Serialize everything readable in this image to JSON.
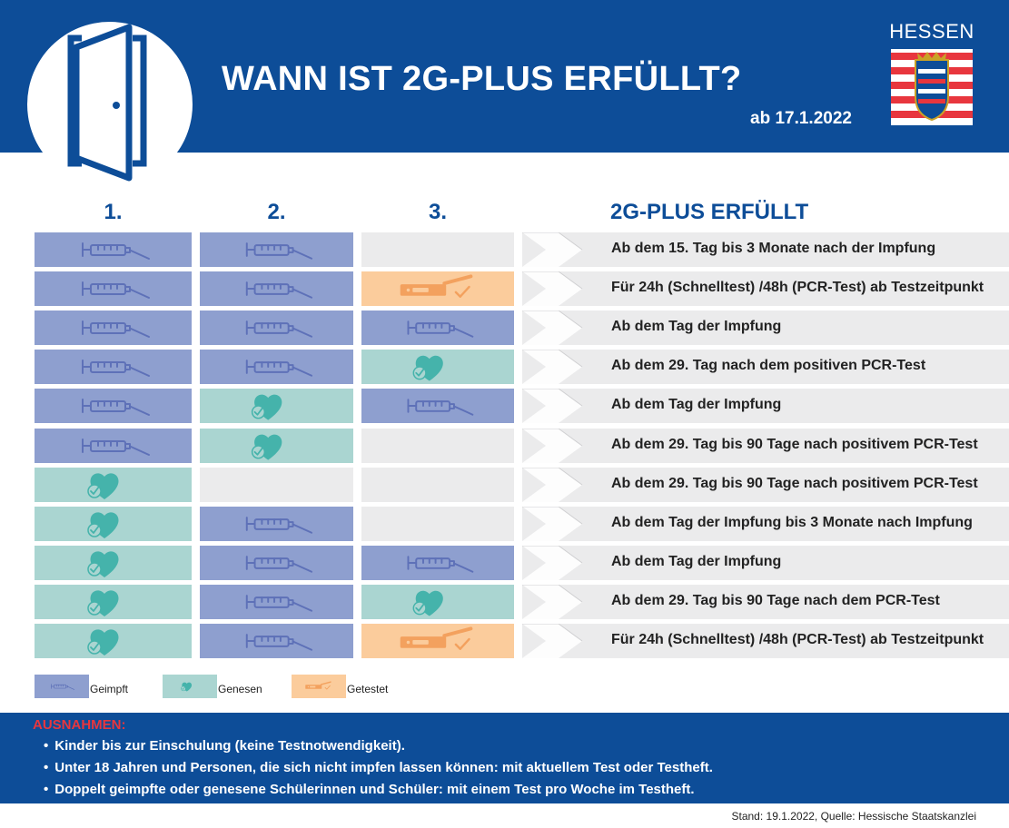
{
  "header": {
    "title": "WANN IST 2G-PLUS ERFÜLLT?",
    "date": "ab 17.1.2022",
    "brand": "HESSEN",
    "colors": {
      "primary": "#0d4d98",
      "accent_red": "#e8363e"
    }
  },
  "columns": [
    "1.",
    "2.",
    "3."
  ],
  "result_header": "2G-PLUS ERFÜLLT",
  "status_colors": {
    "geimpft": "#8e9fcf",
    "genesen": "#aad5d1",
    "getestet": "#fbcc9c",
    "empty": "#ebebec"
  },
  "rows": [
    {
      "cells": [
        "geimpft",
        "geimpft",
        "empty"
      ],
      "result": "Ab dem 15. Tag bis 3 Monate nach der Impfung"
    },
    {
      "cells": [
        "geimpft",
        "geimpft",
        "getestet"
      ],
      "result": "Für 24h (Schnelltest) /48h (PCR-Test) ab Testzeitpunkt"
    },
    {
      "cells": [
        "geimpft",
        "geimpft",
        "geimpft"
      ],
      "result": "Ab dem Tag der Impfung"
    },
    {
      "cells": [
        "geimpft",
        "geimpft",
        "genesen"
      ],
      "result": "Ab dem 29. Tag nach dem positiven PCR-Test"
    },
    {
      "cells": [
        "geimpft",
        "genesen",
        "geimpft"
      ],
      "result": "Ab dem Tag der Impfung"
    },
    {
      "cells": [
        "geimpft",
        "genesen",
        "empty"
      ],
      "result": "Ab dem 29. Tag bis 90 Tage nach positivem PCR-Test"
    },
    {
      "cells": [
        "genesen",
        "empty",
        "empty"
      ],
      "result": "Ab dem 29. Tag bis 90 Tage nach positivem PCR-Test"
    },
    {
      "cells": [
        "genesen",
        "geimpft",
        "empty"
      ],
      "result": "Ab dem Tag der Impfung bis 3 Monate nach Impfung"
    },
    {
      "cells": [
        "genesen",
        "geimpft",
        "geimpft"
      ],
      "result": "Ab dem Tag der Impfung"
    },
    {
      "cells": [
        "genesen",
        "geimpft",
        "genesen"
      ],
      "result": "Ab dem 29. Tag bis 90 Tage nach dem PCR-Test"
    },
    {
      "cells": [
        "genesen",
        "geimpft",
        "getestet"
      ],
      "result": "Für 24h (Schnelltest) /48h (PCR-Test) ab Testzeitpunkt"
    }
  ],
  "legend": [
    {
      "status": "geimpft",
      "label": "Geimpft",
      "icon": "syringe-icon"
    },
    {
      "status": "genesen",
      "label": "Genesen",
      "icon": "heart-check-icon"
    },
    {
      "status": "getestet",
      "label": "Getestet",
      "icon": "test-strip-icon"
    }
  ],
  "exceptions": {
    "title": "AUSNAHMEN:",
    "items": [
      "Kinder bis zur Einschulung (keine Testnotwendigkeit).",
      "Unter 18 Jahren und Personen, die sich nicht impfen lassen können: mit aktuellem Test oder Testheft.",
      "Doppelt geimpfte oder genesene Schülerinnen und Schüler: mit einem Test pro Woche im Testheft."
    ]
  },
  "source": "Stand: 19.1.2022, Quelle: Hessische Staatskanzlei"
}
